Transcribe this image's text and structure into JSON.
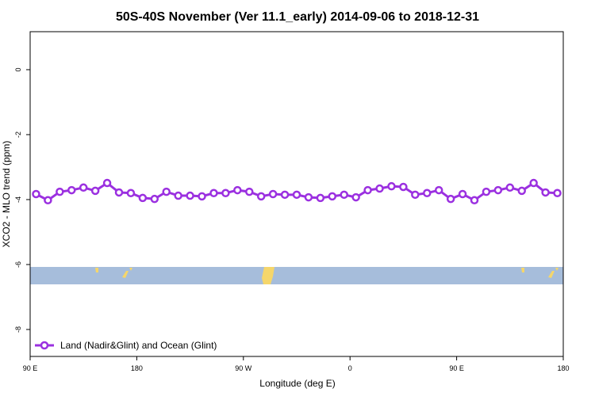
{
  "chart_data": {
    "type": "line",
    "title": "50S-40S November (Ver 11.1_early)   2014-09-06 to 2018-12-31",
    "x_label": "Longitude (deg E)",
    "y_label": "XCO2 - MLO trend (ppm)",
    "x": [
      95,
      105,
      115,
      125,
      135,
      145,
      155,
      165,
      175,
      185,
      195,
      205,
      215,
      225,
      235,
      245,
      255,
      265,
      275,
      285,
      295,
      305,
      315,
      325,
      335,
      345,
      355,
      365,
      375,
      385,
      395,
      405,
      415,
      425,
      435,
      445,
      455,
      465,
      475,
      485,
      495,
      505,
      515,
      525,
      535
    ],
    "series": [
      {
        "name": "Land (Nadir&Glint) and Ocean (Glint)",
        "color": "#9b30e0",
        "values": [
          -3.83,
          -4.02,
          -3.76,
          -3.71,
          -3.63,
          -3.73,
          -3.49,
          -3.78,
          -3.8,
          -3.95,
          -3.98,
          -3.76,
          -3.88,
          -3.88,
          -3.9,
          -3.8,
          -3.8,
          -3.71,
          -3.76,
          -3.9,
          -3.83,
          -3.85,
          -3.85,
          -3.93,
          -3.95,
          -3.9,
          -3.85,
          -3.93,
          -3.71,
          -3.66,
          -3.59,
          -3.61,
          -3.85,
          -3.8,
          -3.71,
          -3.98,
          -3.83,
          -4.02,
          -3.76,
          -3.71,
          -3.63,
          -3.73,
          -3.49,
          -3.78,
          -3.8
        ]
      }
    ],
    "xlim": [
      90,
      540
    ],
    "xticks": [
      {
        "value": 90,
        "label": "90 E"
      },
      180,
      {
        "value": 270,
        "label": "90 W"
      },
      {
        "value": 360,
        "label": "0"
      },
      {
        "value": 450,
        "label": "90 E"
      },
      {
        "value": 540,
        "label": "180"
      }
    ],
    "ylim": [
      -8.83,
      1.17
    ],
    "yticks": [
      0,
      -2,
      -4,
      -6,
      -8
    ],
    "legend": "bottom-left"
  }
}
